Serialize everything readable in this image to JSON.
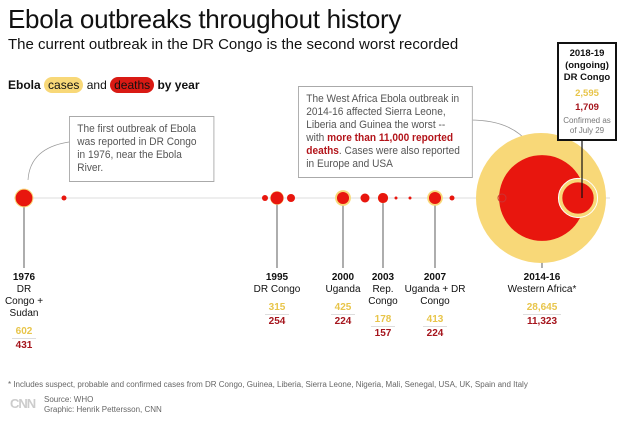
{
  "title": "Ebola outbreaks throughout history",
  "subtitle": "The current outbreak in the DR Congo is the second worst recorded",
  "legend": {
    "prefix": "Ebola",
    "cases": "cases",
    "and": "and",
    "deaths": "deaths",
    "suffix": "by year"
  },
  "notes": {
    "n1976": "The first outbreak of Ebola was reported in DR Congo in 1976, near the Ebola River.",
    "n2014_a": "The West Africa Ebola outbreak in 2014-16 affected Sierra Leone, Liberia and Guinea the worst -- with ",
    "n2014_hl": "more than 11,000 reported deaths",
    "n2014_b": ". Cases were also reported in Europe and USA"
  },
  "current": {
    "year": "2018-19",
    "status": "(ongoing)",
    "place": "DR Congo",
    "cases": "2,595",
    "deaths": "1,709",
    "confirmed": "Confirmed as of July 29"
  },
  "colors": {
    "cases": "#f8d878",
    "deaths": "#e8160e",
    "deaths_text": "#a5141c",
    "cases_text": "#e8c54a"
  },
  "chart_data": {
    "type": "bubble-timeline",
    "outbreaks": [
      {
        "year": "1976",
        "place": "DR Congo + Sudan",
        "cases": 602,
        "deaths": 431,
        "cases_label": "602",
        "deaths_label": "431"
      },
      {
        "year": "1995",
        "place": "DR Congo",
        "cases": 315,
        "deaths": 254,
        "cases_label": "315",
        "deaths_label": "254"
      },
      {
        "year": "2000",
        "place": "Uganda",
        "cases": 425,
        "deaths": 224,
        "cases_label": "425",
        "deaths_label": "224"
      },
      {
        "year": "2003",
        "place": "Rep. Congo",
        "cases": 178,
        "deaths": 157,
        "cases_label": "178",
        "deaths_label": "157"
      },
      {
        "year": "2007",
        "place": "Uganda + DR Congo",
        "cases": 413,
        "deaths": 224,
        "cases_label": "413",
        "deaths_label": "224"
      },
      {
        "year": "2014-16",
        "place": "Western Africa*",
        "cases": 28645,
        "deaths": 11323,
        "cases_label": "28,645",
        "deaths_label": "11,323"
      },
      {
        "year": "2018-19",
        "place": "DR Congo",
        "cases": 2595,
        "deaths": 1709,
        "cases_label": "2,595",
        "deaths_label": "1,709"
      }
    ]
  },
  "footnote": "* Includes suspect, probable and confirmed cases from DR Congo, Guinea, Liberia, Sierra Leone, Nigeria, Mali, Senegal, USA, UK, Spain and Italy",
  "logo": "CNN",
  "source": "Source: WHO",
  "credit": "Graphic: Henrik Pettersson, CNN"
}
